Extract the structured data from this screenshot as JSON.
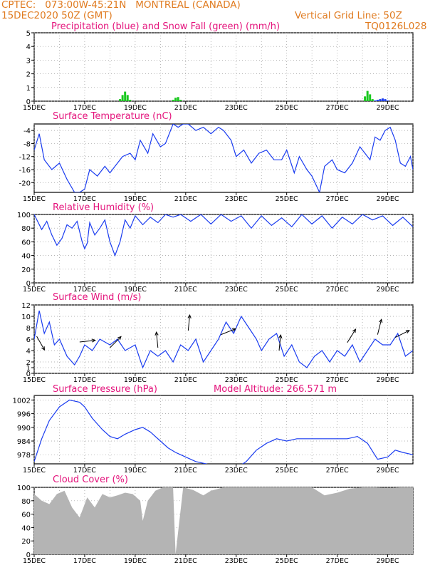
{
  "header": {
    "line1": "CPTEC:   073:00W-45:21N   MONTREAL (CANADA)",
    "line2_left": "15DEC2020 50Z (GMT)",
    "line2_right": "Vertical Grid Line: 50Z",
    "line3_right": "TQ0126L028"
  },
  "x_tick_labels": [
    "15DEC",
    "17DEC",
    "19DEC",
    "21DEC",
    "23DEC",
    "25DEC",
    "27DEC",
    "29DEC"
  ],
  "colors": {
    "header": "#e07b20",
    "title": "#e4147c",
    "line": "#1a3cf0",
    "snow": "#19c81e",
    "cloud": "#b4b4b4",
    "grid": "#9a9a9a"
  },
  "model_altitude": "Model Altitude: 266.571 m",
  "chart_data": [
    {
      "type": "bar",
      "title": "Precipitation (blue) and Snow Fall (green) (mm/h)",
      "ylim": [
        0,
        5
      ],
      "yticks": [
        0,
        1,
        2,
        3,
        4,
        5
      ],
      "xlim": [
        0,
        15
      ],
      "x": [
        3.4,
        3.5,
        3.6,
        3.7,
        3.8,
        5.5,
        5.6,
        5.7,
        5.8,
        13.1,
        13.2,
        13.3,
        13.4,
        13.5,
        13.6,
        13.7,
        13.8,
        13.9,
        14.0
      ],
      "snow": [
        0.15,
        0.45,
        0.7,
        0.45,
        0.1,
        0.1,
        0.25,
        0.3,
        0.1,
        0.35,
        0.75,
        0.5,
        0.15,
        0.05,
        0,
        0,
        0,
        0,
        0
      ],
      "precip": [
        0,
        0,
        0,
        0,
        0,
        0,
        0,
        0,
        0,
        0,
        0,
        0,
        0,
        0.05,
        0.1,
        0.15,
        0.2,
        0.15,
        0.05
      ]
    },
    {
      "type": "line",
      "title": "Surface Temperature (nC)",
      "ylim": [
        -23,
        -2
      ],
      "yticks": [
        -20,
        -16,
        -12,
        -8,
        -4
      ],
      "xlim": [
        0,
        15
      ],
      "x": [
        0,
        0.2,
        0.4,
        0.7,
        1.0,
        1.3,
        1.6,
        1.8,
        2.0,
        2.2,
        2.5,
        2.8,
        3.0,
        3.3,
        3.5,
        3.8,
        4.0,
        4.2,
        4.5,
        4.7,
        5.0,
        5.2,
        5.5,
        5.7,
        5.9,
        6.1,
        6.4,
        6.7,
        7.0,
        7.3,
        7.5,
        7.8,
        8.0,
        8.3,
        8.6,
        8.9,
        9.2,
        9.5,
        9.8,
        10.0,
        10.3,
        10.5,
        10.8,
        11.0,
        11.3,
        11.5,
        11.8,
        12.0,
        12.3,
        12.6,
        12.9,
        13.1,
        13.3,
        13.5,
        13.7,
        13.9,
        14.1,
        14.3,
        14.5,
        14.7,
        14.9,
        15.0
      ],
      "y": [
        -10,
        -5,
        -13,
        -16,
        -14,
        -19,
        -23,
        -23,
        -22,
        -16,
        -18,
        -15,
        -17,
        -14,
        -12,
        -11,
        -13,
        -7,
        -11,
        -5,
        -9,
        -8,
        -2,
        -3,
        -2,
        -2,
        -4,
        -3,
        -5,
        -3,
        -4,
        -7,
        -12,
        -10,
        -14,
        -11,
        -10,
        -13,
        -13,
        -10,
        -17,
        -12,
        -16,
        -18,
        -23,
        -15,
        -13,
        -16,
        -17,
        -14,
        -9,
        -11,
        -13,
        -6,
        -7,
        -4,
        -3,
        -7,
        -14,
        -15,
        -12,
        -16
      ]
    },
    {
      "type": "line",
      "title": "Relative Humidity (%)",
      "ylim": [
        0,
        100
      ],
      "yticks": [
        0,
        20,
        40,
        60,
        80,
        100
      ],
      "xlim": [
        0,
        15
      ],
      "x": [
        0,
        0.3,
        0.5,
        0.7,
        0.9,
        1.1,
        1.3,
        1.5,
        1.7,
        1.9,
        2.0,
        2.1,
        2.2,
        2.4,
        2.6,
        2.8,
        3.0,
        3.2,
        3.4,
        3.6,
        3.8,
        4.0,
        4.3,
        4.6,
        4.9,
        5.2,
        5.5,
        5.8,
        6.2,
        6.6,
        7.0,
        7.4,
        7.8,
        8.2,
        8.6,
        9.0,
        9.4,
        9.8,
        10.2,
        10.6,
        11.0,
        11.4,
        11.8,
        12.2,
        12.6,
        13.0,
        13.4,
        13.8,
        14.2,
        14.6,
        15.0
      ],
      "y": [
        100,
        78,
        90,
        70,
        55,
        65,
        85,
        80,
        90,
        60,
        50,
        58,
        88,
        70,
        80,
        92,
        60,
        40,
        60,
        92,
        80,
        98,
        85,
        96,
        88,
        100,
        96,
        100,
        90,
        100,
        86,
        100,
        90,
        98,
        80,
        98,
        84,
        95,
        82,
        100,
        86,
        98,
        80,
        96,
        86,
        100,
        92,
        98,
        84,
        96,
        82
      ]
    },
    {
      "type": "line",
      "title": "Surface Wind (m/s)",
      "ylim": [
        0,
        12
      ],
      "yticks": [
        0,
        1,
        2,
        4,
        6,
        8,
        10,
        12
      ],
      "xlim": [
        0,
        15
      ],
      "x": [
        0,
        0.2,
        0.4,
        0.6,
        0.8,
        1.0,
        1.3,
        1.6,
        1.8,
        2.0,
        2.3,
        2.6,
        3.0,
        3.3,
        3.6,
        4.0,
        4.3,
        4.6,
        4.9,
        5.2,
        5.5,
        5.8,
        6.1,
        6.4,
        6.7,
        7.0,
        7.3,
        7.6,
        7.9,
        8.2,
        8.5,
        8.8,
        9.0,
        9.3,
        9.6,
        9.9,
        10.2,
        10.5,
        10.8,
        11.1,
        11.4,
        11.7,
        12.0,
        12.3,
        12.6,
        12.9,
        13.2,
        13.5,
        13.8,
        14.1,
        14.4,
        14.7,
        15.0
      ],
      "y": [
        6,
        11,
        7,
        9,
        5,
        6,
        3,
        1.5,
        3,
        5,
        4,
        6,
        5,
        6,
        4,
        5,
        1,
        4,
        3,
        4,
        2,
        5,
        4,
        6,
        2,
        4,
        6,
        9,
        7,
        10,
        8,
        6,
        4,
        6,
        7,
        3,
        5,
        2,
        1,
        3,
        4,
        2,
        4,
        3,
        5,
        2,
        4,
        6,
        5,
        5,
        7,
        3,
        4
      ],
      "arrows": [
        {
          "x": 0.1,
          "y": 6.5,
          "dx": 0.8,
          "dy": -1.4
        },
        {
          "x": 1.8,
          "y": 5.5,
          "dx": 0.9,
          "dy": 0.1
        },
        {
          "x": 3.0,
          "y": 4.5,
          "dx": 1.0,
          "dy": 1.0
        },
        {
          "x": 4.9,
          "y": 4.5,
          "dx": -0.1,
          "dy": 1.0
        },
        {
          "x": 6.1,
          "y": 7.5,
          "dx": 0.1,
          "dy": 1.0
        },
        {
          "x": 7.4,
          "y": 6.8,
          "dx": 1.0,
          "dy": 0.4
        },
        {
          "x": 9.7,
          "y": 4.0,
          "dx": 0.1,
          "dy": 1.0
        },
        {
          "x": 12.4,
          "y": 5.4,
          "dx": 0.5,
          "dy": 0.8
        },
        {
          "x": 13.6,
          "y": 6.8,
          "dx": 0.3,
          "dy": 1.2
        },
        {
          "x": 14.3,
          "y": 6.3,
          "dx": 0.8,
          "dy": 0.4
        }
      ]
    },
    {
      "type": "line",
      "title": "Surface Pressure (hPa)",
      "ylim": [
        974,
        1004
      ],
      "yticks": [
        978,
        984,
        990,
        996,
        1002
      ],
      "xlim": [
        0,
        15
      ],
      "x": [
        0,
        0.3,
        0.6,
        1.0,
        1.4,
        1.8,
        2.0,
        2.3,
        2.7,
        3.0,
        3.3,
        3.6,
        4.0,
        4.3,
        4.6,
        5.0,
        5.3,
        5.6,
        6.0,
        6.4,
        6.8,
        7.2,
        7.6,
        8.0,
        8.4,
        8.8,
        9.2,
        9.6,
        10.0,
        10.4,
        10.8,
        11.2,
        11.6,
        12.0,
        12.4,
        12.8,
        13.2,
        13.6,
        14.0,
        14.3,
        14.6,
        15.0
      ],
      "y": [
        975,
        985,
        993,
        999,
        1002,
        1001,
        999,
        994,
        989,
        986,
        985,
        987,
        989,
        990,
        988,
        984,
        981,
        979,
        977,
        975,
        974,
        973,
        972,
        972,
        975,
        980,
        983,
        985,
        984,
        985,
        985,
        985,
        985,
        985,
        985,
        986,
        983,
        976,
        977,
        980,
        979,
        978
      ]
    },
    {
      "type": "area",
      "title": "Cloud Cover (%)",
      "ylim": [
        0,
        100
      ],
      "yticks": [
        0,
        20,
        40,
        60,
        80,
        100
      ],
      "xlim": [
        0,
        15
      ],
      "x": [
        0,
        0.3,
        0.6,
        0.9,
        1.2,
        1.5,
        1.8,
        2.1,
        2.4,
        2.7,
        3.0,
        3.3,
        3.6,
        3.9,
        4.2,
        4.3,
        4.5,
        4.8,
        5.1,
        5.5,
        5.6,
        5.9,
        6.3,
        6.7,
        7.0,
        7.5,
        8.0,
        8.5,
        9.0,
        9.5,
        10.0,
        10.5,
        11.0,
        11.5,
        12.0,
        12.5,
        13.0,
        13.5,
        14.0,
        14.5,
        15.0
      ],
      "y": [
        90,
        80,
        75,
        90,
        95,
        70,
        55,
        85,
        70,
        90,
        85,
        88,
        92,
        90,
        80,
        50,
        80,
        95,
        100,
        100,
        0,
        100,
        96,
        88,
        95,
        100,
        100,
        100,
        100,
        100,
        100,
        100,
        100,
        88,
        92,
        98,
        100,
        100,
        99,
        100,
        100
      ]
    }
  ]
}
